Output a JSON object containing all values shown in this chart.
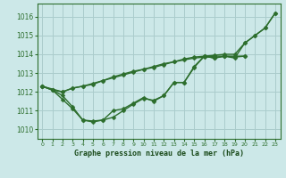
{
  "title": "Graphe pression niveau de la mer (hPa)",
  "background_color": "#cce8e8",
  "grid_color": "#aacccc",
  "line_color": "#2d6e2d",
  "xlim": [
    -0.5,
    23.5
  ],
  "ylim": [
    1009.5,
    1016.7
  ],
  "xticks": [
    0,
    1,
    2,
    3,
    4,
    5,
    6,
    7,
    8,
    9,
    10,
    11,
    12,
    13,
    14,
    15,
    16,
    17,
    18,
    19,
    20,
    21,
    22,
    23
  ],
  "yticks": [
    1010,
    1011,
    1012,
    1013,
    1014,
    1015,
    1016
  ],
  "series": [
    {
      "x": [
        0,
        1,
        2,
        3,
        4,
        5,
        6,
        7,
        8,
        9,
        10,
        11,
        12,
        13,
        14,
        15,
        16,
        17,
        18,
        19,
        20,
        21,
        22,
        23
      ],
      "y": [
        1012.3,
        1012.1,
        1011.6,
        1011.1,
        1010.5,
        1010.4,
        1010.5,
        1011.0,
        1011.1,
        1011.4,
        1011.7,
        1011.5,
        1011.8,
        1012.5,
        1012.5,
        1013.3,
        1013.9,
        1013.8,
        1013.9,
        1013.8,
        1014.6,
        1015.0,
        1015.4,
        1016.2
      ],
      "marker": "D",
      "markersize": 2.5,
      "lw": 1.0
    },
    {
      "x": [
        0,
        2,
        3,
        4,
        5,
        6,
        7,
        8,
        9,
        10,
        11,
        12,
        13,
        14,
        15,
        16,
        17,
        18,
        19,
        20,
        21,
        22,
        23
      ],
      "y": [
        1012.3,
        1012.0,
        1012.2,
        1012.3,
        1012.4,
        1012.6,
        1012.8,
        1012.95,
        1013.1,
        1013.2,
        1013.35,
        1013.5,
        1013.6,
        1013.75,
        1013.85,
        1013.9,
        1013.95,
        1014.0,
        1014.0,
        1014.6,
        1015.0,
        1015.4,
        1016.2
      ],
      "marker": "D",
      "markersize": 2.5,
      "lw": 1.0
    },
    {
      "x": [
        0,
        1,
        2,
        3,
        4,
        5,
        6,
        7,
        8,
        9,
        10,
        11,
        12,
        13,
        14,
        15,
        16,
        17,
        18,
        19,
        20
      ],
      "y": [
        1012.3,
        1012.1,
        1012.0,
        1012.2,
        1012.3,
        1012.45,
        1012.6,
        1012.75,
        1012.9,
        1013.05,
        1013.2,
        1013.3,
        1013.45,
        1013.6,
        1013.7,
        1013.8,
        1013.85,
        1013.9,
        1013.9,
        1013.9,
        1013.9
      ],
      "marker": "D",
      "markersize": 2.5,
      "lw": 1.0
    },
    {
      "x": [
        0,
        1,
        2,
        3,
        4,
        5,
        6,
        7,
        8,
        9,
        10,
        11,
        12,
        13,
        14,
        15,
        16,
        17,
        18,
        19,
        20
      ],
      "y": [
        1012.3,
        1012.1,
        1011.8,
        1011.2,
        1010.5,
        1010.45,
        1010.5,
        1010.65,
        1011.0,
        1011.35,
        1011.65,
        1011.55,
        1011.8,
        1012.5,
        1012.5,
        1013.35,
        1013.9,
        1013.8,
        1013.9,
        1013.85,
        1013.9
      ],
      "marker": "D",
      "markersize": 2.5,
      "lw": 1.0
    }
  ]
}
